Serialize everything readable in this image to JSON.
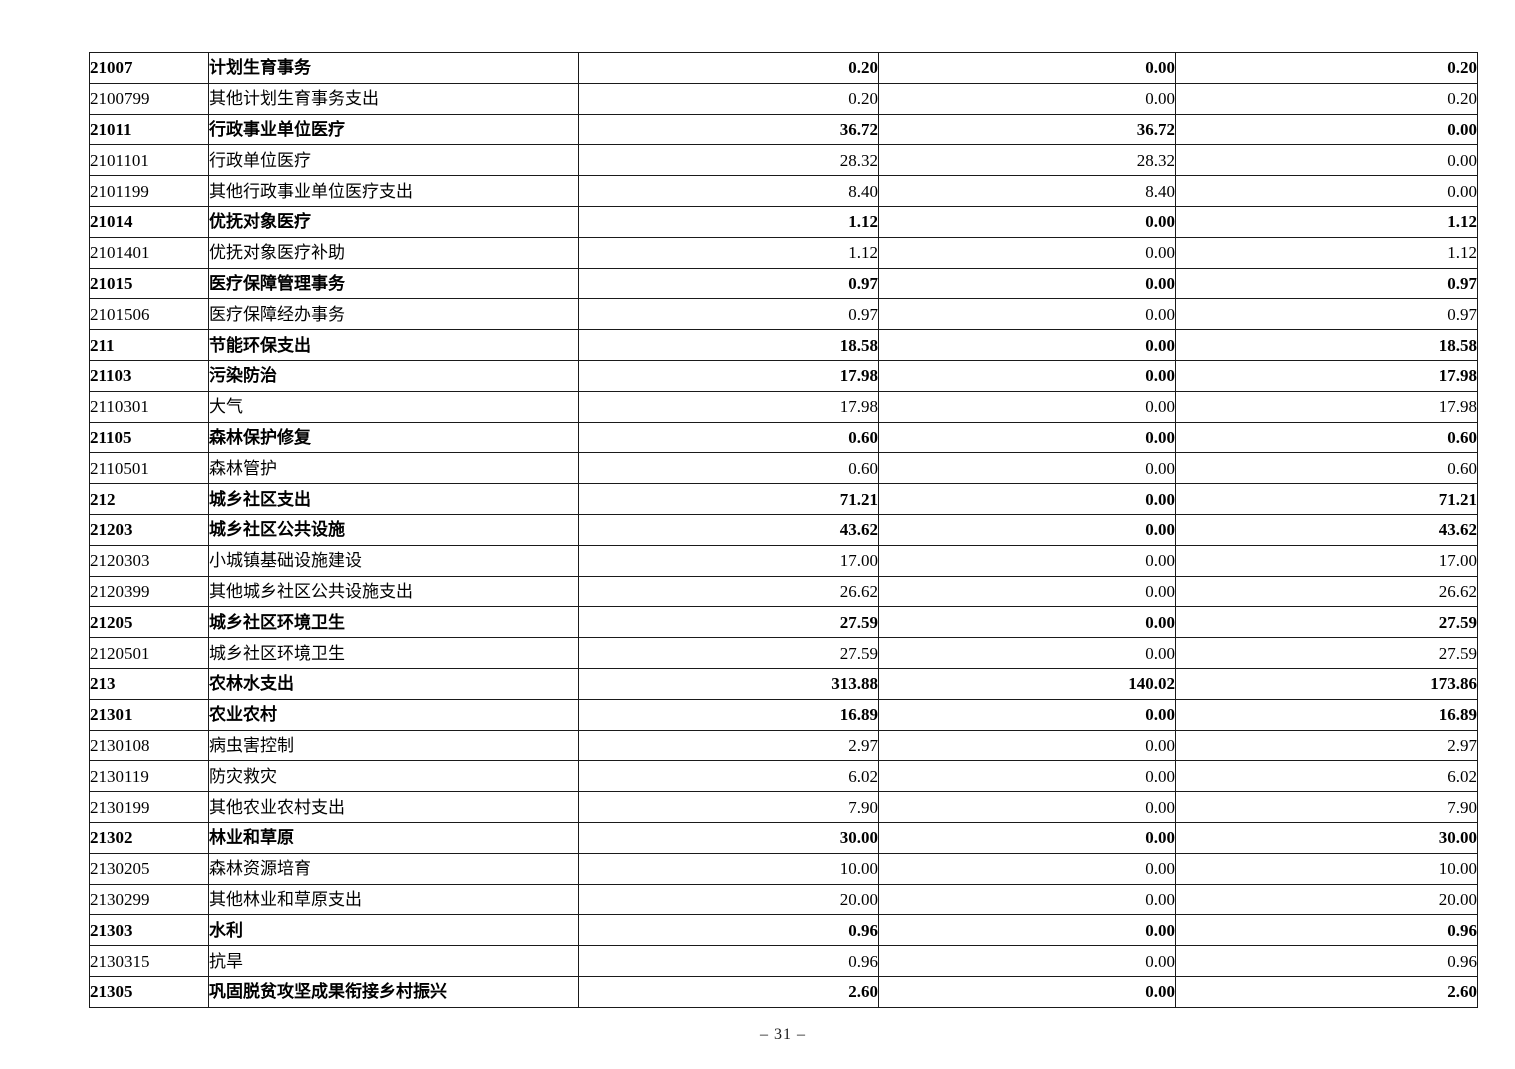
{
  "table": {
    "rows": [
      {
        "code": "21007",
        "name": "计划生育事务",
        "values": [
          "0.20",
          "0.00",
          "0.20"
        ],
        "bold": true
      },
      {
        "code": "2100799",
        "name": "其他计划生育事务支出",
        "values": [
          "0.20",
          "0.00",
          "0.20"
        ],
        "bold": false
      },
      {
        "code": "21011",
        "name": "行政事业单位医疗",
        "values": [
          "36.72",
          "36.72",
          "0.00"
        ],
        "bold": true
      },
      {
        "code": "2101101",
        "name": "行政单位医疗",
        "values": [
          "28.32",
          "28.32",
          "0.00"
        ],
        "bold": false
      },
      {
        "code": "2101199",
        "name": "其他行政事业单位医疗支出",
        "values": [
          "8.40",
          "8.40",
          "0.00"
        ],
        "bold": false
      },
      {
        "code": "21014",
        "name": "优抚对象医疗",
        "values": [
          "1.12",
          "0.00",
          "1.12"
        ],
        "bold": true
      },
      {
        "code": "2101401",
        "name": "优抚对象医疗补助",
        "values": [
          "1.12",
          "0.00",
          "1.12"
        ],
        "bold": false
      },
      {
        "code": "21015",
        "name": "医疗保障管理事务",
        "values": [
          "0.97",
          "0.00",
          "0.97"
        ],
        "bold": true
      },
      {
        "code": "2101506",
        "name": "医疗保障经办事务",
        "values": [
          "0.97",
          "0.00",
          "0.97"
        ],
        "bold": false
      },
      {
        "code": "211",
        "name": "节能环保支出",
        "values": [
          "18.58",
          "0.00",
          "18.58"
        ],
        "bold": true
      },
      {
        "code": "21103",
        "name": "污染防治",
        "values": [
          "17.98",
          "0.00",
          "17.98"
        ],
        "bold": true
      },
      {
        "code": "2110301",
        "name": "大气",
        "values": [
          "17.98",
          "0.00",
          "17.98"
        ],
        "bold": false
      },
      {
        "code": "21105",
        "name": "森林保护修复",
        "values": [
          "0.60",
          "0.00",
          "0.60"
        ],
        "bold": true
      },
      {
        "code": "2110501",
        "name": "森林管护",
        "values": [
          "0.60",
          "0.00",
          "0.60"
        ],
        "bold": false
      },
      {
        "code": "212",
        "name": "城乡社区支出",
        "values": [
          "71.21",
          "0.00",
          "71.21"
        ],
        "bold": true
      },
      {
        "code": "21203",
        "name": "城乡社区公共设施",
        "values": [
          "43.62",
          "0.00",
          "43.62"
        ],
        "bold": true
      },
      {
        "code": "2120303",
        "name": "小城镇基础设施建设",
        "values": [
          "17.00",
          "0.00",
          "17.00"
        ],
        "bold": false
      },
      {
        "code": "2120399",
        "name": "其他城乡社区公共设施支出",
        "values": [
          "26.62",
          "0.00",
          "26.62"
        ],
        "bold": false
      },
      {
        "code": "21205",
        "name": "城乡社区环境卫生",
        "values": [
          "27.59",
          "0.00",
          "27.59"
        ],
        "bold": true
      },
      {
        "code": "2120501",
        "name": "城乡社区环境卫生",
        "values": [
          "27.59",
          "0.00",
          "27.59"
        ],
        "bold": false
      },
      {
        "code": "213",
        "name": "农林水支出",
        "values": [
          "313.88",
          "140.02",
          "173.86"
        ],
        "bold": true
      },
      {
        "code": "21301",
        "name": "农业农村",
        "values": [
          "16.89",
          "0.00",
          "16.89"
        ],
        "bold": true
      },
      {
        "code": "2130108",
        "name": "病虫害控制",
        "values": [
          "2.97",
          "0.00",
          "2.97"
        ],
        "bold": false
      },
      {
        "code": "2130119",
        "name": "防灾救灾",
        "values": [
          "6.02",
          "0.00",
          "6.02"
        ],
        "bold": false
      },
      {
        "code": "2130199",
        "name": "其他农业农村支出",
        "values": [
          "7.90",
          "0.00",
          "7.90"
        ],
        "bold": false
      },
      {
        "code": "21302",
        "name": "林业和草原",
        "values": [
          "30.00",
          "0.00",
          "30.00"
        ],
        "bold": true
      },
      {
        "code": "2130205",
        "name": "森林资源培育",
        "values": [
          "10.00",
          "0.00",
          "10.00"
        ],
        "bold": false
      },
      {
        "code": "2130299",
        "name": "其他林业和草原支出",
        "values": [
          "20.00",
          "0.00",
          "20.00"
        ],
        "bold": false
      },
      {
        "code": "21303",
        "name": "水利",
        "values": [
          "0.96",
          "0.00",
          "0.96"
        ],
        "bold": true
      },
      {
        "code": "2130315",
        "name": "抗旱",
        "values": [
          "0.96",
          "0.00",
          "0.96"
        ],
        "bold": false
      },
      {
        "code": "21305",
        "name": "巩固脱贫攻坚成果衔接乡村振兴",
        "values": [
          "2.60",
          "0.00",
          "2.60"
        ],
        "bold": true
      }
    ]
  },
  "footer": {
    "page_label": "– 31 –"
  }
}
